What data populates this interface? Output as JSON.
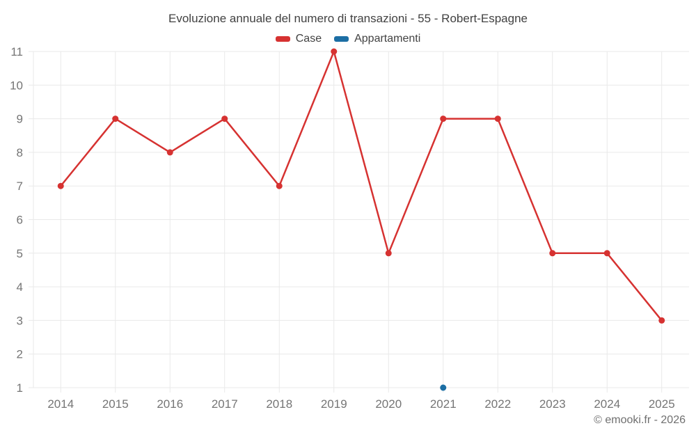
{
  "chart_data": {
    "type": "line",
    "title": "Evoluzione annuale del numero di transazioni - 55 - Robert-Espagne",
    "categories": [
      "2014",
      "2015",
      "2016",
      "2017",
      "2018",
      "2019",
      "2020",
      "2021",
      "2022",
      "2023",
      "2024",
      "2025"
    ],
    "series": [
      {
        "name": "Case",
        "color": "#d63231",
        "values": [
          7,
          9,
          8,
          9,
          7,
          11,
          5,
          9,
          9,
          5,
          5,
          3
        ]
      },
      {
        "name": "Appartamenti",
        "color": "#1c6ea4",
        "values": [
          null,
          null,
          null,
          null,
          null,
          null,
          null,
          1,
          null,
          null,
          null,
          null
        ]
      }
    ],
    "ylim": [
      1,
      11
    ],
    "yticks": [
      1,
      2,
      3,
      4,
      5,
      6,
      7,
      8,
      9,
      10,
      11
    ],
    "grid": true,
    "legend_position": "top",
    "axis_label_color": "#757575",
    "grid_color": "#e9e9e9"
  },
  "footer": {
    "credit": "© emooki.fr - 2026"
  }
}
